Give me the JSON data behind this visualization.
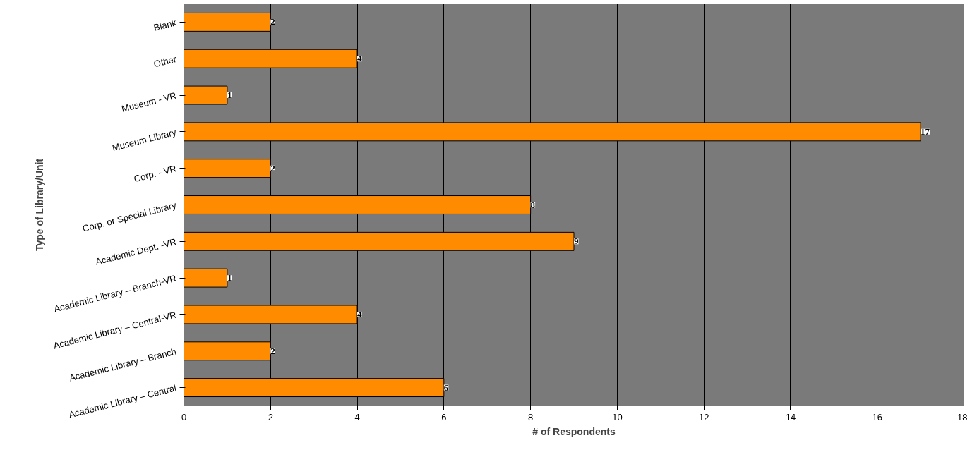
{
  "chart_data": {
    "type": "bar",
    "orientation": "horizontal",
    "xlabel": "# of Respondents",
    "ylabel": "Type of Library/Unit",
    "categories": [
      "Blank",
      "Other",
      "Museum - VR",
      "Museum Library",
      "Corp. - VR",
      "Corp. or Special Library",
      "Academic Dept. -VR",
      "Academic Library – Branch-VR",
      "Academic Library – Central-VR",
      "Academic Library – Branch",
      "Academic Library – Central"
    ],
    "values": [
      2,
      4,
      1,
      17,
      2,
      8,
      9,
      1,
      4,
      2,
      6
    ],
    "color": "#ff8c00",
    "xlim": [
      0,
      18
    ],
    "xticks": [
      0,
      2,
      4,
      6,
      8,
      10,
      12,
      14,
      16,
      18
    ],
    "grid": "x",
    "data_labels": true
  }
}
